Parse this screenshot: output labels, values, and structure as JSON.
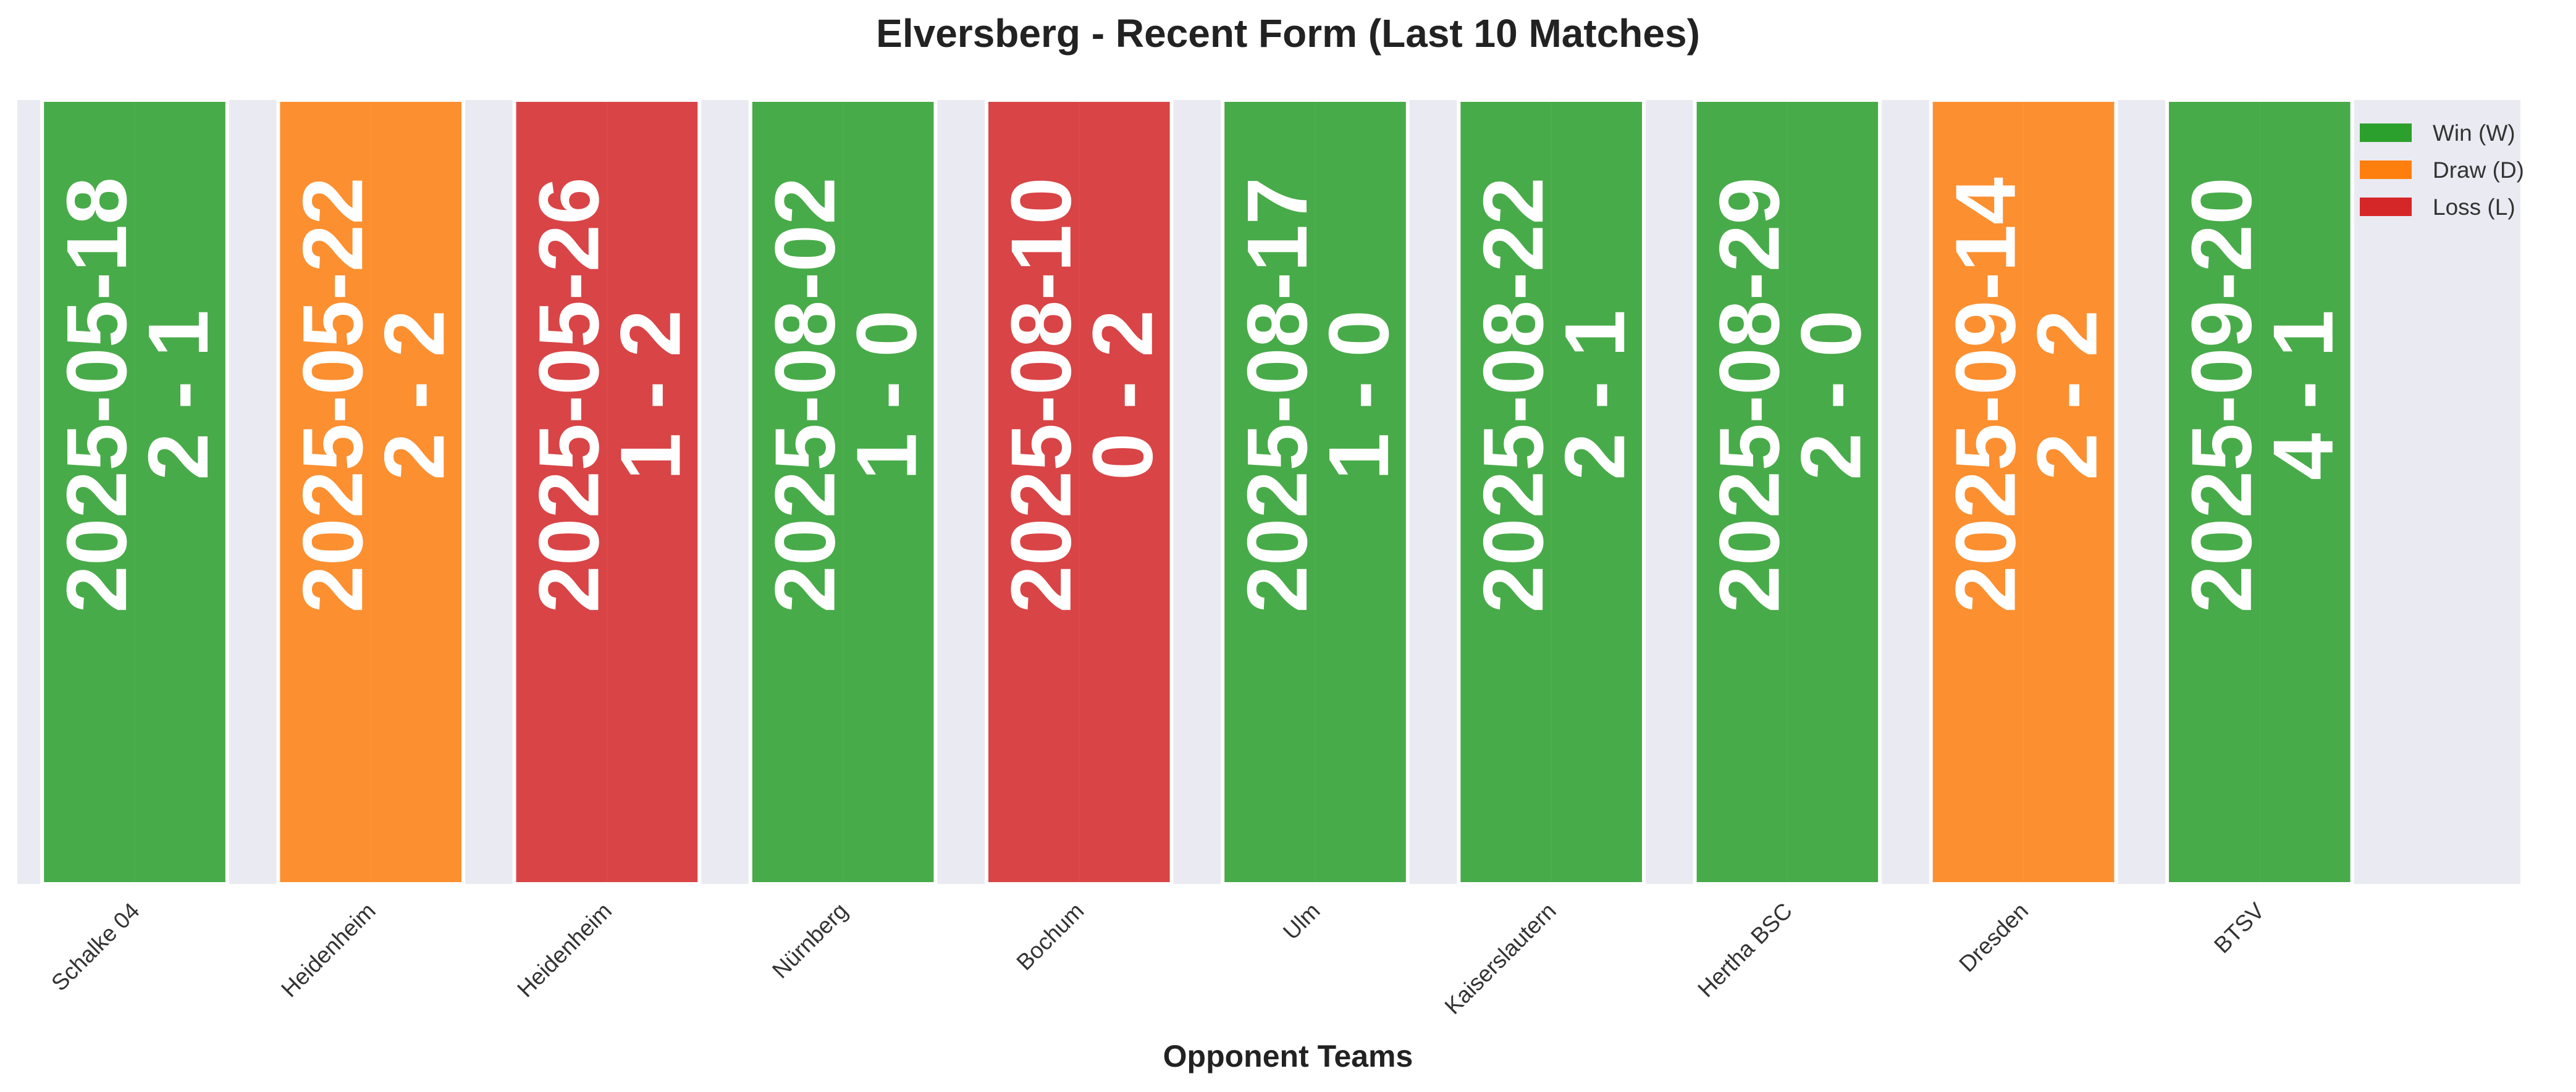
{
  "chart_data": {
    "type": "bar",
    "title": "Elversberg - Recent Form (Last 10 Matches)",
    "xlabel": "Opponent Teams",
    "ylabel": "",
    "categories": [
      "Schalke 04",
      "Heidenheim",
      "Heidenheim",
      "Nürnberg",
      "Bochum",
      "Ulm",
      "Kaiserslautern",
      "Hertha BSC",
      "Dresden",
      "BTSV"
    ],
    "matches": [
      {
        "opponent": "Schalke 04",
        "date": "2025-05-18",
        "score": "2 - 1",
        "result": "W"
      },
      {
        "opponent": "Heidenheim",
        "date": "2025-05-22",
        "score": "2 - 2",
        "result": "D"
      },
      {
        "opponent": "Heidenheim",
        "date": "2025-05-26",
        "score": "1 - 2",
        "result": "L"
      },
      {
        "opponent": "Nürnberg",
        "date": "2025-08-02",
        "score": "1 - 0",
        "result": "W"
      },
      {
        "opponent": "Bochum",
        "date": "2025-08-10",
        "score": "0 - 2",
        "result": "L"
      },
      {
        "opponent": "Ulm",
        "date": "2025-08-17",
        "score": "1 - 0",
        "result": "W"
      },
      {
        "opponent": "Kaiserslautern",
        "date": "2025-08-22",
        "score": "2 - 1",
        "result": "W"
      },
      {
        "opponent": "Hertha BSC",
        "date": "2025-08-29",
        "score": "2 - 0",
        "result": "W"
      },
      {
        "opponent": "Dresden",
        "date": "2025-09-14",
        "score": "2 - 2",
        "result": "D"
      },
      {
        "opponent": "BTSV",
        "date": "2025-09-20",
        "score": "4 - 1",
        "result": "W"
      }
    ],
    "values": [
      1,
      1,
      1,
      1,
      1,
      1,
      1,
      1,
      1,
      1
    ],
    "ylim": [
      0,
      1
    ],
    "grid": true,
    "legend": {
      "placement": "top-right",
      "entries": [
        {
          "key": "W",
          "label": "Win (W)",
          "color": "#2ca02c"
        },
        {
          "key": "D",
          "label": "Draw (D)",
          "color": "#ff7f0e"
        },
        {
          "key": "L",
          "label": "Loss (L)",
          "color": "#d62728"
        }
      ]
    }
  },
  "colors": {
    "plot_background": "#eaeaf2",
    "bar_edge": "#ffffff"
  }
}
